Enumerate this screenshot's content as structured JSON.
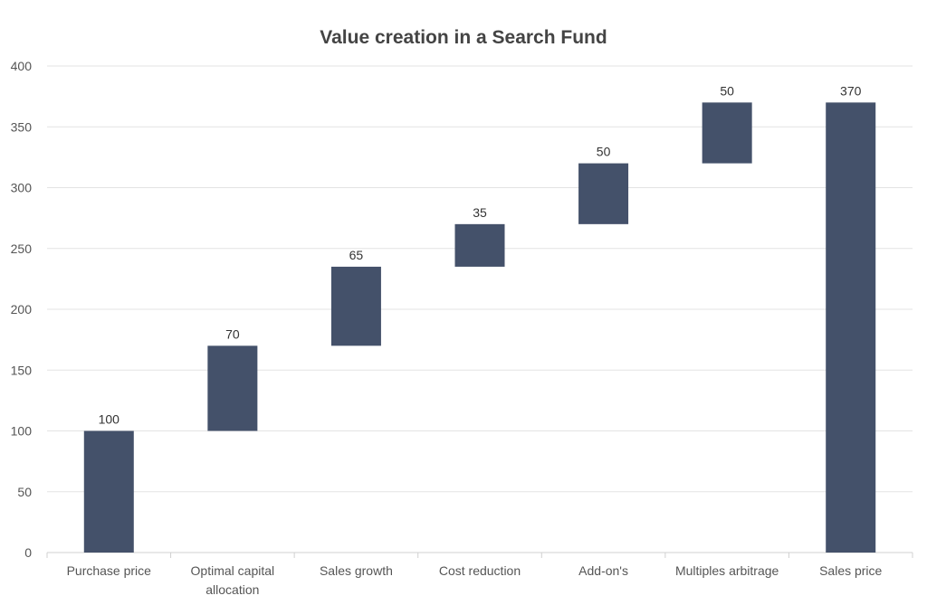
{
  "chart_data": {
    "type": "bar",
    "subtype": "waterfall",
    "title": "Value creation in a Search Fund",
    "xlabel": "",
    "ylabel": "",
    "ylim": [
      0,
      400
    ],
    "yticks": [
      0,
      50,
      100,
      150,
      200,
      250,
      300,
      350,
      400
    ],
    "grid": true,
    "categories": [
      [
        "Purchase price"
      ],
      [
        "Optimal capital",
        "allocation"
      ],
      [
        "Sales growth"
      ],
      [
        "Cost reduction"
      ],
      [
        "Add-on's"
      ],
      [
        "Multiples arbitrage"
      ],
      [
        "Sales price"
      ]
    ],
    "values": [
      100,
      70,
      65,
      35,
      50,
      50,
      370
    ],
    "bases": [
      0,
      100,
      170,
      235,
      270,
      320,
      0
    ],
    "color": "#44516A"
  }
}
